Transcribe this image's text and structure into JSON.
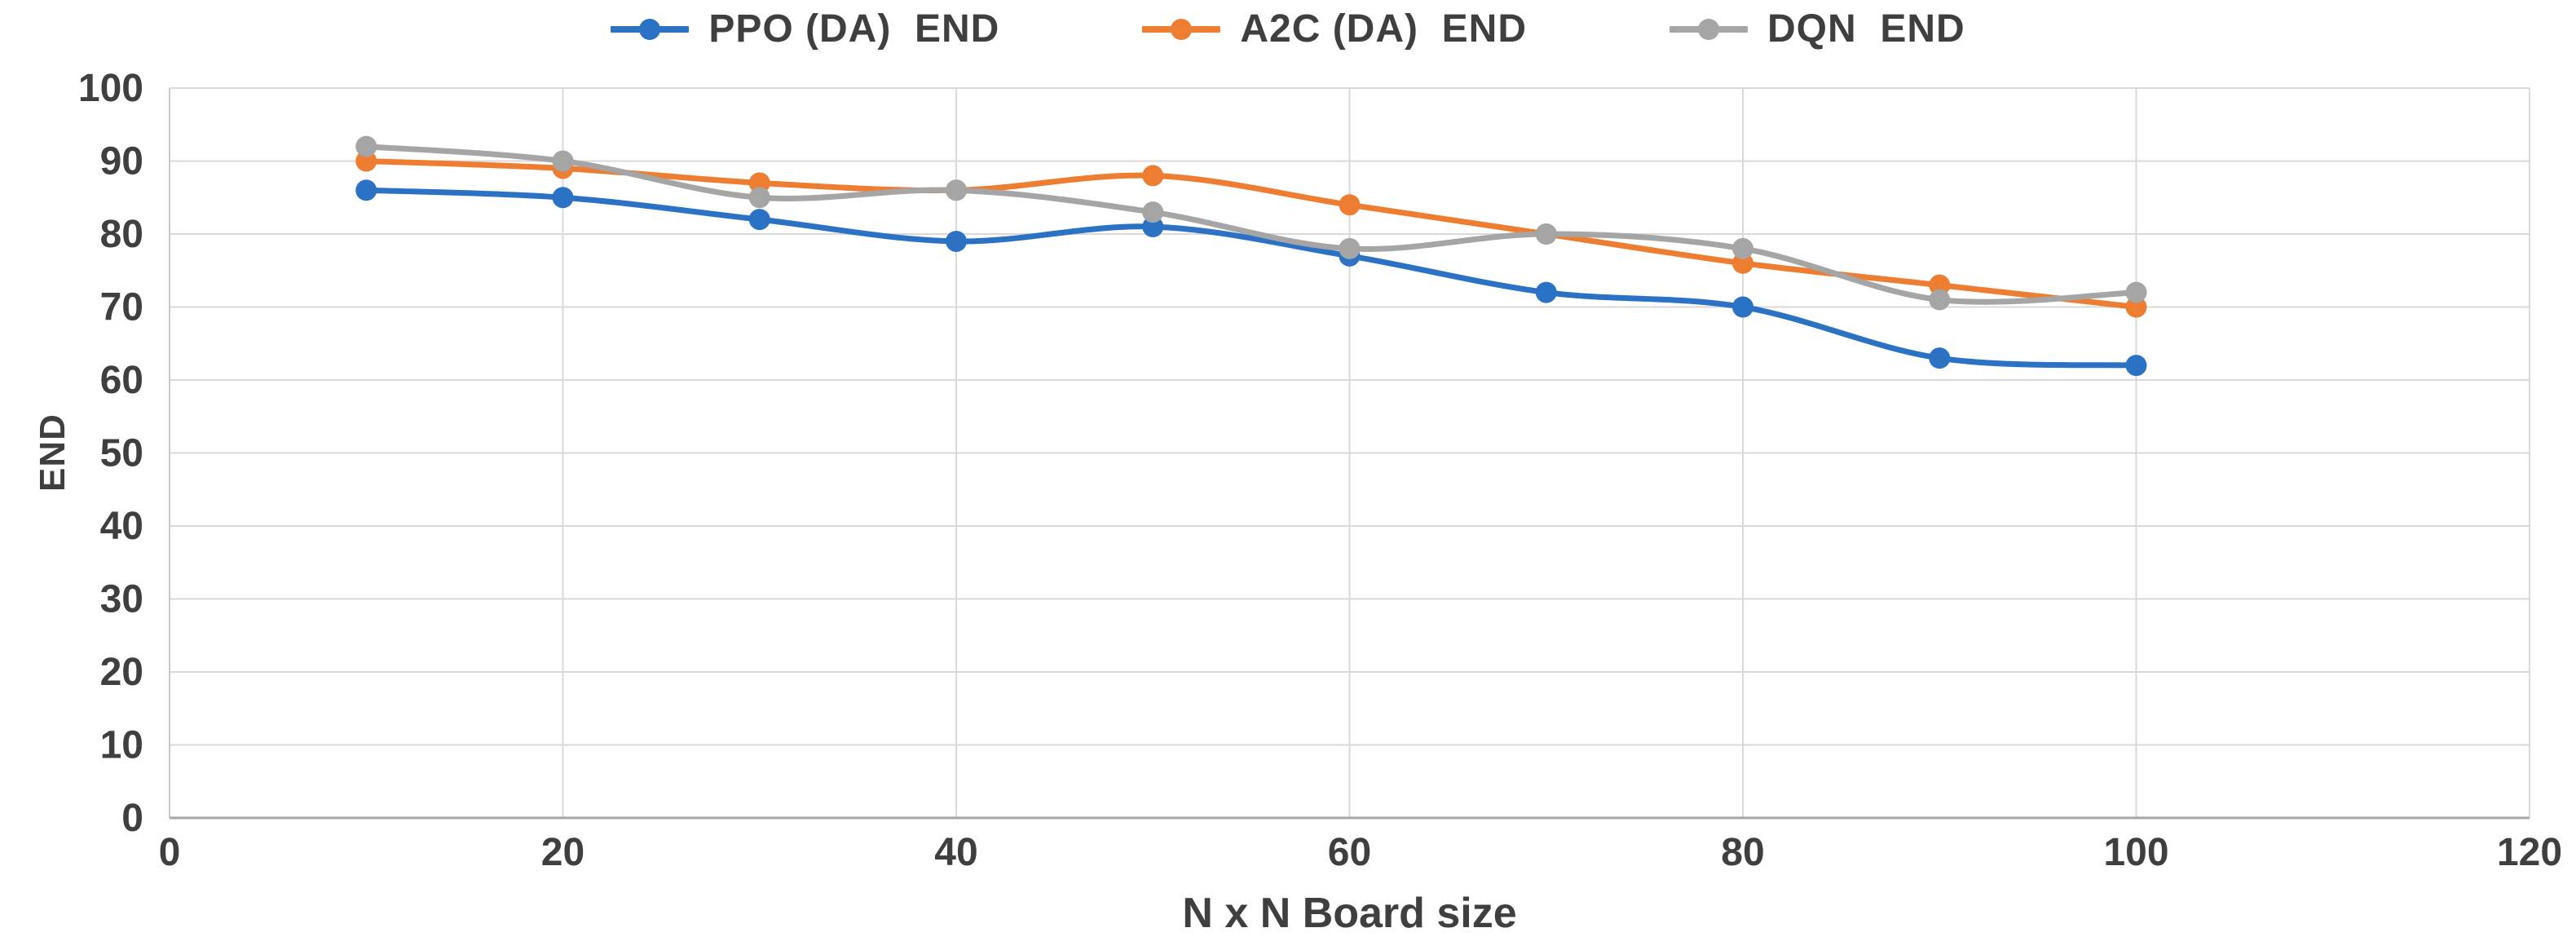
{
  "chart_data": {
    "type": "line",
    "title": "",
    "xlabel": "N x N Board size",
    "ylabel": "END",
    "x": [
      10,
      20,
      30,
      40,
      50,
      60,
      70,
      80,
      90,
      100
    ],
    "xlim": [
      0,
      120
    ],
    "ylim": [
      0,
      100
    ],
    "x_ticks": [
      0,
      20,
      40,
      60,
      80,
      100,
      120
    ],
    "y_ticks": [
      0,
      10,
      20,
      30,
      40,
      50,
      60,
      70,
      80,
      90,
      100
    ],
    "grid": true,
    "smooth": true,
    "legend_position": "top-center",
    "series": [
      {
        "label": "PPO (DA)  END",
        "color": "#2B72C4",
        "values": [
          86,
          85,
          82,
          79,
          81,
          77,
          72,
          70,
          63,
          62
        ]
      },
      {
        "label": "A2C (DA)  END",
        "color": "#ED7D31",
        "values": [
          90,
          89,
          87,
          86,
          88,
          84,
          80,
          76,
          73,
          70
        ]
      },
      {
        "label": "DQN  END",
        "color": "#A5A5A5",
        "values": [
          92,
          90,
          85,
          86,
          83,
          78,
          80,
          78,
          71,
          72
        ]
      }
    ]
  },
  "style_colors": {
    "tick_text": "#3F3F3F",
    "gridline": "#D9D9D9",
    "left_axis_line": "#C9C9C9",
    "bottom_axis_line": "#A6A6A6"
  }
}
